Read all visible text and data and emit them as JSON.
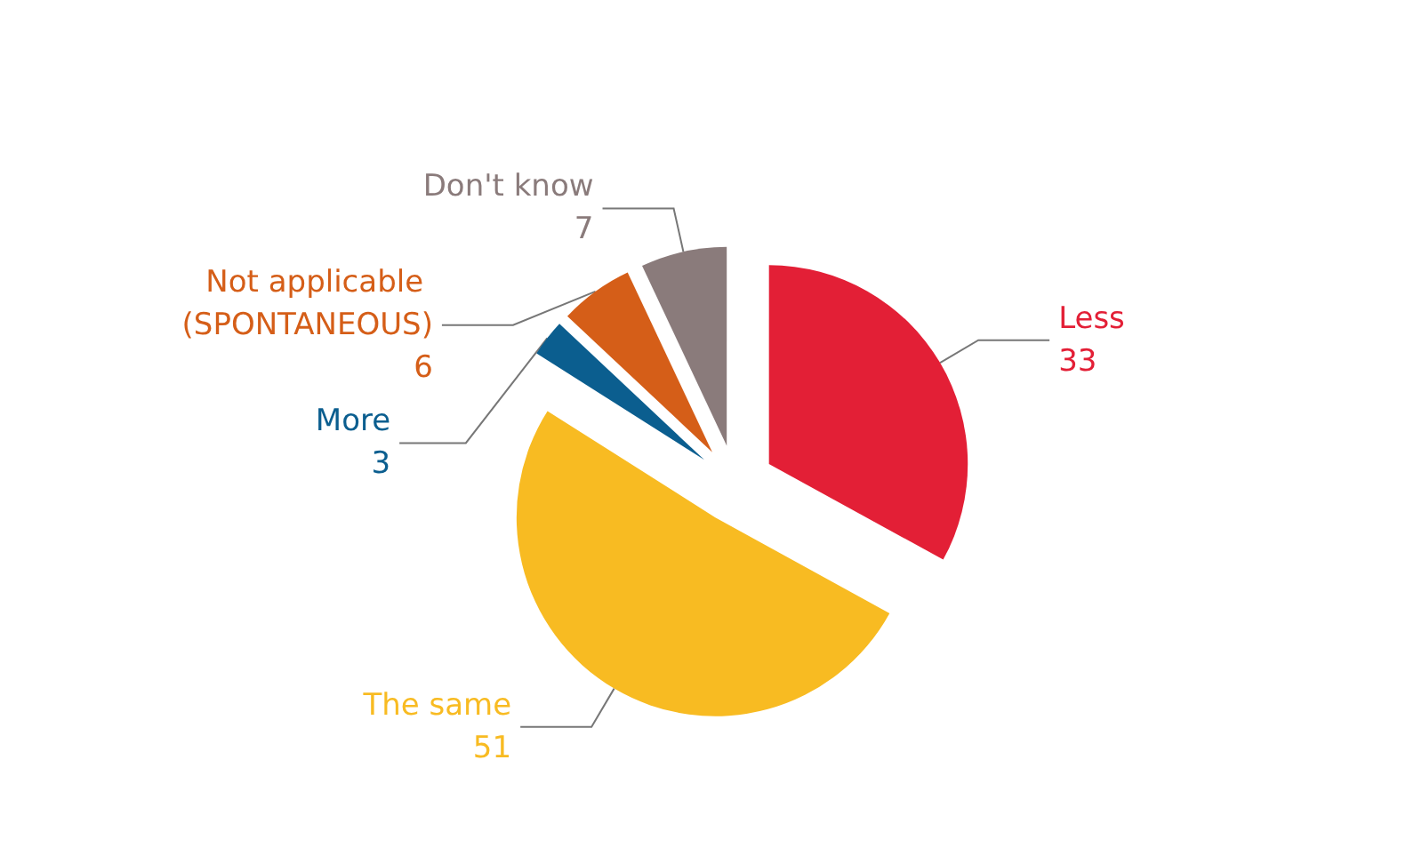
{
  "chart_data": {
    "type": "pie",
    "categories": [
      "Less",
      "The same",
      "More",
      "Not applicable (SPONTANEOUS)",
      "Don't know"
    ],
    "values": [
      33,
      51,
      3,
      6,
      7
    ],
    "colors": [
      "#e31f36",
      "#f8bb22",
      "#0b5e8f",
      "#d55e18",
      "#8a7b7b"
    ],
    "data_labels": true,
    "legend": false
  }
}
